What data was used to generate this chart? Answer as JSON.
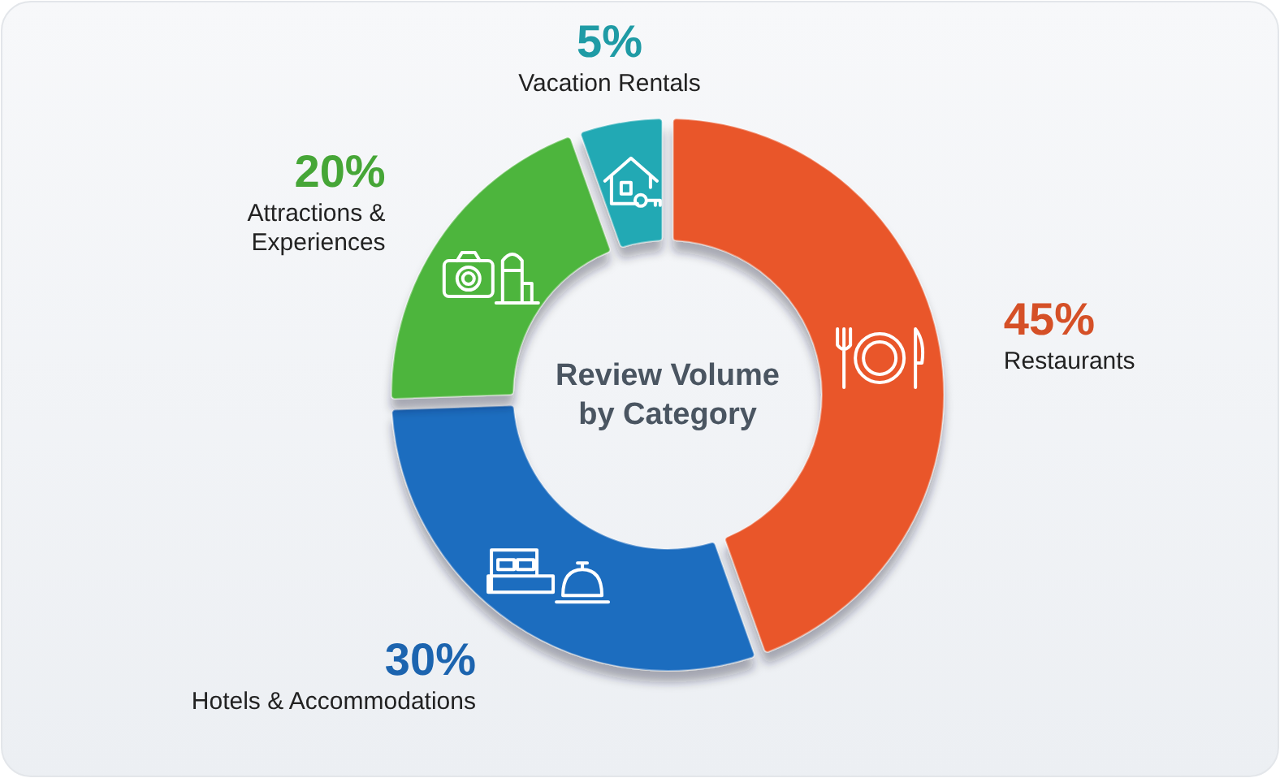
{
  "chart_data": {
    "type": "donut",
    "title": "Review Volume by Category",
    "categories": [
      "Restaurants",
      "Hotels & Accommodations",
      "Attractions & Experiences",
      "Vacation Rentals"
    ],
    "values": [
      45,
      30,
      20,
      5
    ],
    "colors": [
      "#e9572b",
      "#1f6dbf",
      "#4db53c",
      "#22a9b4"
    ],
    "value_labels": [
      "45%",
      "30%",
      "20%",
      "5%"
    ]
  }
}
